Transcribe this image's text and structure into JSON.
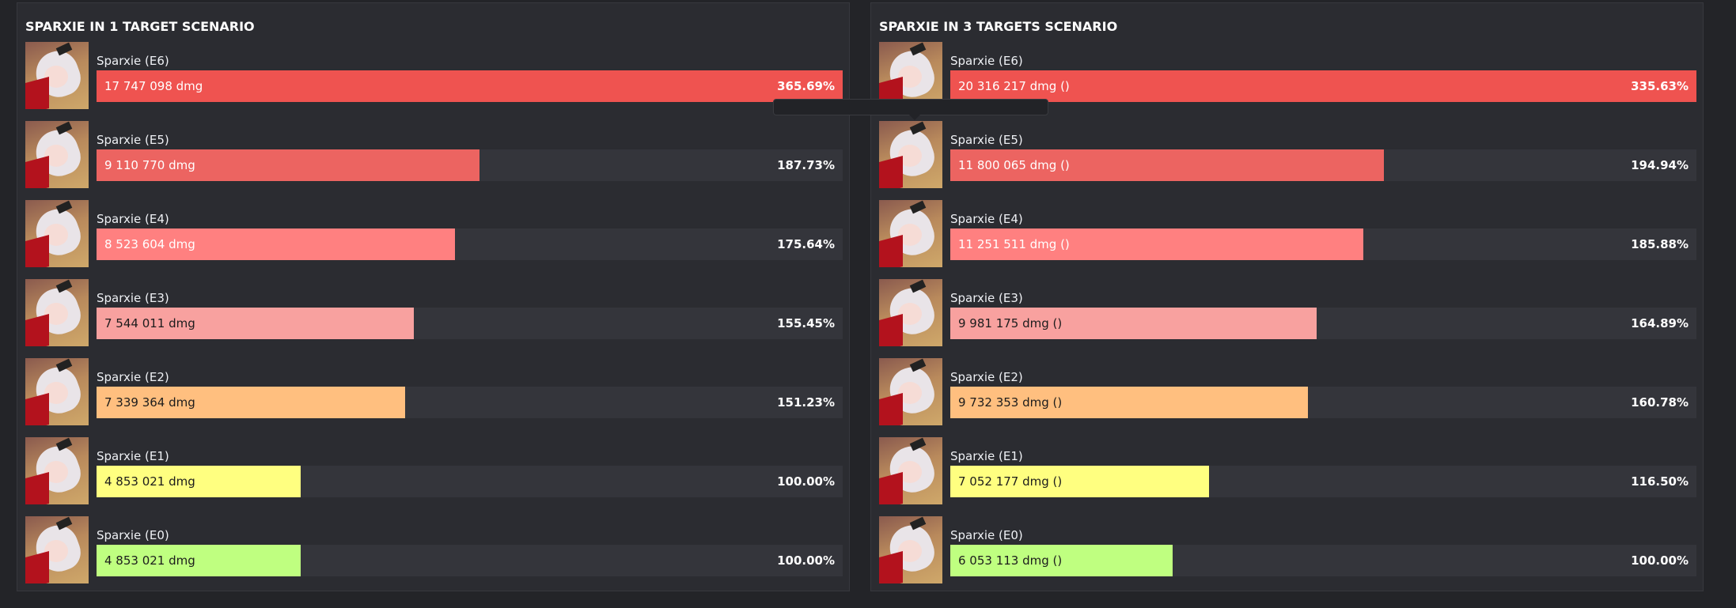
{
  "panels": [
    {
      "title": "SPARXIE IN 1 TARGET SCENARIO",
      "rows": [
        {
          "name": "Sparxie (E6)",
          "dmg": "17 747 098 dmg",
          "pct": "365.69%",
          "value": 365.69,
          "color": "#ef5350",
          "text_color": "#ffffff"
        },
        {
          "name": "Sparxie (E5)",
          "dmg": "9 110 770 dmg",
          "pct": "187.73%",
          "value": 187.73,
          "color": "#ec6461",
          "text_color": "#ffffff"
        },
        {
          "name": "Sparxie (E4)",
          "dmg": "8 523 604 dmg",
          "pct": "175.64%",
          "value": 175.64,
          "color": "#ff8080",
          "text_color": "#ffffff"
        },
        {
          "name": "Sparxie (E3)",
          "dmg": "7 544 011 dmg",
          "pct": "155.45%",
          "value": 155.45,
          "color": "#f8a19f",
          "text_color": "#1c1c1c"
        },
        {
          "name": "Sparxie (E2)",
          "dmg": "7 339 364 dmg",
          "pct": "151.23%",
          "value": 151.23,
          "color": "#ffbf7f",
          "text_color": "#1c1c1c"
        },
        {
          "name": "Sparxie (E1)",
          "dmg": "4 853 021 dmg",
          "pct": "100.00%",
          "value": 100.0,
          "color": "#ffff80",
          "text_color": "#1c1c1c"
        },
        {
          "name": "Sparxie (E0)",
          "dmg": "4 853 021 dmg",
          "pct": "100.00%",
          "value": 100.0,
          "color": "#bfff80",
          "text_color": "#1c1c1c"
        }
      ]
    },
    {
      "title": "SPARXIE IN 3 TARGETS SCENARIO",
      "rows": [
        {
          "name": "Sparxie (E6)",
          "dmg": "20 316 217 dmg ()",
          "pct": "335.63%",
          "value": 335.63,
          "color": "#ef5350",
          "text_color": "#ffffff"
        },
        {
          "name": "Sparxie (E5)",
          "dmg": "11 800 065 dmg ()",
          "pct": "194.94%",
          "value": 194.94,
          "color": "#ec6461",
          "text_color": "#ffffff"
        },
        {
          "name": "Sparxie (E4)",
          "dmg": "11 251 511 dmg ()",
          "pct": "185.88%",
          "value": 185.88,
          "color": "#ff8080",
          "text_color": "#ffffff"
        },
        {
          "name": "Sparxie (E3)",
          "dmg": "9 981 175 dmg ()",
          "pct": "164.89%",
          "value": 164.89,
          "color": "#f8a19f",
          "text_color": "#1c1c1c"
        },
        {
          "name": "Sparxie (E2)",
          "dmg": "9 732 353 dmg ()",
          "pct": "160.78%",
          "value": 160.78,
          "color": "#ffbf7f",
          "text_color": "#1c1c1c"
        },
        {
          "name": "Sparxie (E1)",
          "dmg": "7 052 177 dmg ()",
          "pct": "116.50%",
          "value": 116.5,
          "color": "#ffff80",
          "text_color": "#1c1c1c"
        },
        {
          "name": "Sparxie (E0)",
          "dmg": "6 053 113 dmg ()",
          "pct": "100.00%",
          "value": 100.0,
          "color": "#bfff80",
          "text_color": "#1c1c1c"
        }
      ]
    }
  ],
  "tooltip": {
    "text": ""
  }
}
